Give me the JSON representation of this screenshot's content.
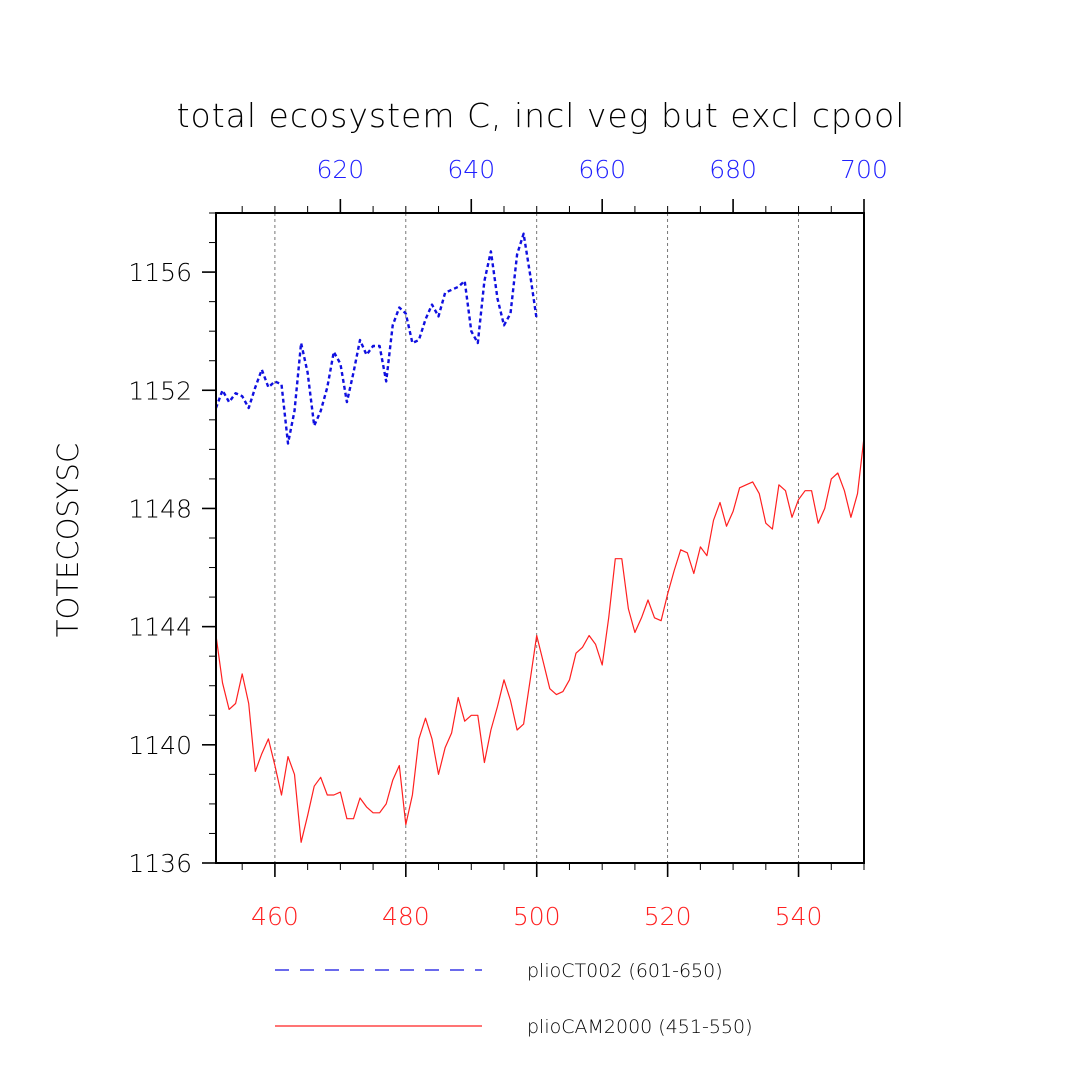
{
  "chart_data": {
    "type": "line",
    "title": "total ecosystem C, incl veg but excl cpool",
    "ylabel": "TOTECOSYSC",
    "ylim": [
      1136,
      1158
    ],
    "y_ticks": [
      1136,
      1140,
      1144,
      1148,
      1152,
      1156
    ],
    "y_tick_labels": [
      "1136",
      "1140",
      "1144",
      "1148",
      "1152",
      "1156"
    ],
    "bottom_axis": {
      "range": [
        451,
        550
      ],
      "ticks": [
        460,
        480,
        500,
        520,
        540
      ],
      "tick_labels": [
        "460",
        "480",
        "500",
        "520",
        "540"
      ],
      "color": "#ff2020"
    },
    "top_axis": {
      "range": [
        601,
        700
      ],
      "ticks": [
        620,
        640,
        660,
        680,
        700
      ],
      "tick_labels": [
        "620",
        "640",
        "660",
        "680",
        "700"
      ],
      "color": "#2020ff"
    },
    "grid": "vertical dashed at bottom-axis major ticks",
    "series": [
      {
        "name": "plioCT002 (601-650)",
        "color": "#1010e0",
        "style": "dashed",
        "axis": "top",
        "x_start": 601,
        "values": [
          1151.4,
          1152.0,
          1151.6,
          1151.9,
          1151.8,
          1151.4,
          1152.1,
          1152.7,
          1152.1,
          1152.3,
          1152.2,
          1150.2,
          1151.3,
          1153.6,
          1152.6,
          1150.8,
          1151.3,
          1152.1,
          1153.3,
          1152.9,
          1151.6,
          1152.6,
          1153.7,
          1153.2,
          1153.5,
          1153.5,
          1152.3,
          1154.2,
          1154.8,
          1154.6,
          1153.6,
          1153.7,
          1154.4,
          1154.9,
          1154.5,
          1155.3,
          1155.4,
          1155.5,
          1155.7,
          1154.0,
          1153.6,
          1155.7,
          1156.7,
          1155.1,
          1154.2,
          1154.6,
          1156.6,
          1157.3,
          1155.9,
          1154.4
        ]
      },
      {
        "name": "plioCAM2000 (451-550)",
        "color": "#ff2020",
        "style": "solid",
        "axis": "bottom",
        "x_start": 451,
        "values": [
          1143.7,
          1142.1,
          1141.2,
          1141.4,
          1142.4,
          1141.4,
          1139.1,
          1139.7,
          1140.2,
          1139.3,
          1138.3,
          1139.6,
          1139.0,
          1136.7,
          1137.6,
          1138.6,
          1138.9,
          1138.3,
          1138.3,
          1138.4,
          1137.5,
          1137.5,
          1138.2,
          1137.9,
          1137.7,
          1137.7,
          1138.0,
          1138.8,
          1139.3,
          1137.3,
          1138.3,
          1140.2,
          1140.9,
          1140.2,
          1139.0,
          1139.9,
          1140.4,
          1141.6,
          1140.8,
          1141.0,
          1141.0,
          1139.4,
          1140.5,
          1141.3,
          1142.2,
          1141.5,
          1140.5,
          1140.7,
          1142.2,
          1143.7,
          1142.8,
          1141.9,
          1141.7,
          1141.8,
          1142.2,
          1143.1,
          1143.3,
          1143.7,
          1143.4,
          1142.7,
          1144.3,
          1146.3,
          1146.3,
          1144.6,
          1143.8,
          1144.3,
          1144.9,
          1144.3,
          1144.2,
          1145.1,
          1145.9,
          1146.6,
          1146.5,
          1145.8,
          1146.7,
          1146.4,
          1147.6,
          1148.2,
          1147.4,
          1147.9,
          1148.7,
          1148.8,
          1148.9,
          1148.5,
          1147.5,
          1147.3,
          1148.8,
          1148.6,
          1147.7,
          1148.3,
          1148.6,
          1148.6,
          1147.5,
          1148.0,
          1149.0,
          1149.2,
          1148.6,
          1147.7,
          1148.5,
          1150.4
        ]
      }
    ]
  }
}
